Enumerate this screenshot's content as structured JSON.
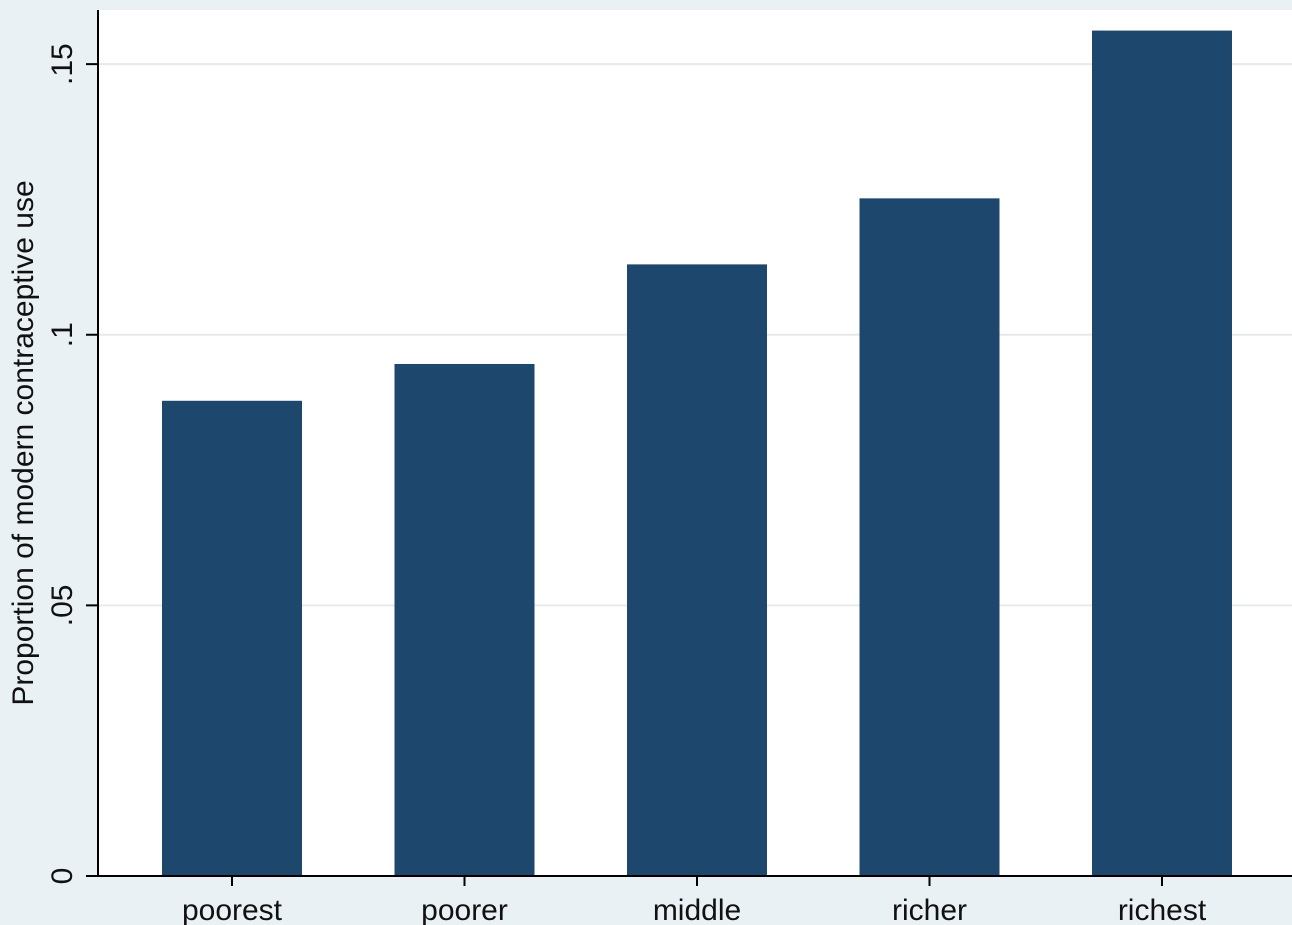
{
  "chart_data": {
    "type": "bar",
    "categories": [
      "poorest",
      "poorer",
      "middle",
      "richer",
      "richest"
    ],
    "values": [
      0.0878,
      0.0946,
      0.113,
      0.1252,
      0.1562
    ],
    "title": "",
    "xlabel": "",
    "ylabel": "Proportion of modern contraceptive use",
    "ylim": [
      0,
      0.16
    ],
    "yticks": [
      0,
      0.05,
      0.1,
      0.15
    ],
    "ytick_labels": [
      "0",
      ".05",
      ".1",
      ".15"
    ],
    "grid": true,
    "legend": "none",
    "colors": {
      "bar": "#1e476e",
      "plot_background": "#ffffff",
      "outer_background": "#eaf1f5",
      "grid": "#e6eaec",
      "axis": "#000000"
    }
  }
}
